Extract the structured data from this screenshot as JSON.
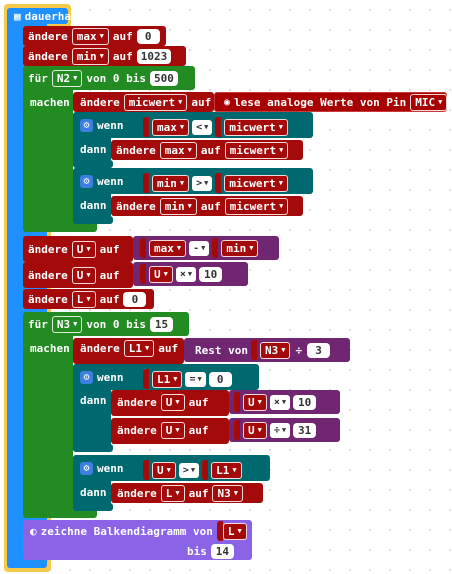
{
  "event": {
    "label": "dauerhaft",
    "icon": "grid-icon"
  },
  "kw": {
    "set": "ändere",
    "to": "auf",
    "for": "für",
    "from_to": "von 0 bis",
    "do": "machen",
    "if": "wenn",
    "then": "dann",
    "read_analog": "lese analoge Werte von Pin",
    "remainder": "Rest von",
    "plot_bar": "zeichne Balkendiagramm von",
    "up_to": "bis"
  },
  "vars": {
    "max": "max",
    "min": "min",
    "micwert": "micwert",
    "U": "U",
    "L": "L",
    "L1": "L1",
    "N2": "N2",
    "N3": "N3",
    "pin": "MIC"
  },
  "ops": {
    "lt": "<",
    "gt": ">",
    "eq": "=",
    "minus": "-",
    "times": "×",
    "div": "÷"
  },
  "nums": {
    "zero": "0",
    "max_init": "1023",
    "loop1_end": "500",
    "ten": "10",
    "loop2_end": "15",
    "three": "3",
    "thirty_one": "31",
    "plot_max": "14"
  },
  "colors": {
    "event_block": "#1e90ff",
    "loop_block": "#228b22",
    "variable_block": "#a50a0a",
    "logic_block": "#006970",
    "math_block": "#712672",
    "led_block": "#8a63e6",
    "pin_block": "#a80000"
  }
}
